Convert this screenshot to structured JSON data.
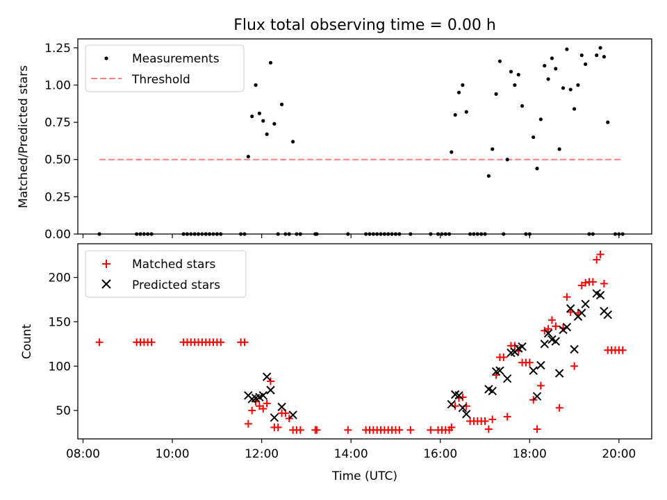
{
  "chart_data": [
    {
      "type": "scatter",
      "title": "Flux total observing time = 0.00 h",
      "xlabel": "",
      "ylabel": "Matched/Predicted stars",
      "ylim": [
        0,
        1.31
      ],
      "xlim": [
        "07:53",
        "20:44"
      ],
      "x_ticks": [
        "08:00",
        "10:00",
        "12:00",
        "14:00",
        "16:00",
        "18:00",
        "20:00"
      ],
      "x_tick_labels_visible": false,
      "y_ticks": [
        "0.00",
        "0.25",
        "0.50",
        "0.75",
        "1.00",
        "1.25"
      ],
      "legend": {
        "placement": "top-left",
        "entries": [
          "Measurements",
          "Threshold"
        ]
      },
      "series": [
        {
          "name": "Measurements",
          "marker": "dot",
          "color": "#000000",
          "points": [
            [
              "08:22",
              0
            ],
            [
              "09:12",
              0
            ],
            [
              "09:17",
              0
            ],
            [
              "09:22",
              0
            ],
            [
              "09:27",
              0
            ],
            [
              "09:32",
              0
            ],
            [
              "10:15",
              0
            ],
            [
              "10:20",
              0
            ],
            [
              "10:25",
              0
            ],
            [
              "10:30",
              0
            ],
            [
              "10:35",
              0
            ],
            [
              "10:40",
              0
            ],
            [
              "10:45",
              0
            ],
            [
              "10:50",
              0
            ],
            [
              "10:55",
              0
            ],
            [
              "11:00",
              0
            ],
            [
              "11:05",
              0
            ],
            [
              "11:32",
              0
            ],
            [
              "11:37",
              0
            ],
            [
              "11:42",
              0.52
            ],
            [
              "11:47",
              0.79
            ],
            [
              "11:52",
              1.0
            ],
            [
              "11:57",
              0.81
            ],
            [
              "12:02",
              0.76
            ],
            [
              "12:07",
              0.67
            ],
            [
              "12:12",
              1.15
            ],
            [
              "12:17",
              0.74
            ],
            [
              "12:27",
              0.87
            ],
            [
              "12:42",
              0.62
            ],
            [
              "12:22",
              0
            ],
            [
              "12:32",
              0
            ],
            [
              "12:37",
              0
            ],
            [
              "12:47",
              0
            ],
            [
              "12:52",
              0
            ],
            [
              "13:12",
              0
            ],
            [
              "13:14",
              0
            ],
            [
              "13:56",
              0
            ],
            [
              "14:20",
              0
            ],
            [
              "14:25",
              0
            ],
            [
              "14:30",
              0
            ],
            [
              "14:35",
              0
            ],
            [
              "14:40",
              0
            ],
            [
              "14:45",
              0
            ],
            [
              "14:50",
              0
            ],
            [
              "14:55",
              0
            ],
            [
              "15:00",
              0
            ],
            [
              "15:05",
              0
            ],
            [
              "15:20",
              0
            ],
            [
              "15:47",
              0
            ],
            [
              "15:57",
              0
            ],
            [
              "16:02",
              0
            ],
            [
              "16:07",
              0
            ],
            [
              "16:12",
              0
            ],
            [
              "16:15",
              0.55
            ],
            [
              "16:20",
              0.8
            ],
            [
              "16:25",
              0.95
            ],
            [
              "16:30",
              1.0
            ],
            [
              "16:35",
              0.82
            ],
            [
              "16:40",
              0
            ],
            [
              "16:45",
              0
            ],
            [
              "16:50",
              0
            ],
            [
              "16:55",
              0
            ],
            [
              "17:00",
              0
            ],
            [
              "17:25",
              0
            ],
            [
              "17:05",
              0.39
            ],
            [
              "17:10",
              0.57
            ],
            [
              "17:15",
              0.94
            ],
            [
              "17:20",
              1.16
            ],
            [
              "17:30",
              0.5
            ],
            [
              "17:35",
              1.09
            ],
            [
              "17:40",
              1.0
            ],
            [
              "17:45",
              1.07
            ],
            [
              "17:50",
              0.86
            ],
            [
              "17:55",
              0
            ],
            [
              "18:00",
              0
            ],
            [
              "18:05",
              0.65
            ],
            [
              "18:10",
              0.44
            ],
            [
              "18:15",
              0.77
            ],
            [
              "18:20",
              1.13
            ],
            [
              "18:25",
              1.04
            ],
            [
              "18:30",
              1.18
            ],
            [
              "18:35",
              1.11
            ],
            [
              "18:40",
              0.57
            ],
            [
              "18:45",
              0.98
            ],
            [
              "18:50",
              1.24
            ],
            [
              "18:55",
              0.97
            ],
            [
              "19:00",
              0.84
            ],
            [
              "19:05",
              1.0
            ],
            [
              "19:10",
              1.2
            ],
            [
              "19:15",
              1.14
            ],
            [
              "19:20",
              0
            ],
            [
              "19:25",
              0
            ],
            [
              "19:30",
              1.2
            ],
            [
              "19:35",
              1.25
            ],
            [
              "19:40",
              1.19
            ],
            [
              "19:45",
              0.75
            ],
            [
              "19:55",
              0
            ],
            [
              "20:00",
              0
            ],
            [
              "20:05",
              0
            ]
          ]
        },
        {
          "name": "Threshold",
          "marker": "dashed-line",
          "color": "#ff7f7f",
          "points": [
            [
              "08:22",
              0.5
            ],
            [
              "20:05",
              0.5
            ]
          ]
        }
      ]
    },
    {
      "type": "scatter",
      "title": "",
      "xlabel": "Time (UTC)",
      "ylabel": "Count",
      "ylim": [
        18,
        238
      ],
      "xlim": [
        "07:53",
        "20:44"
      ],
      "x_ticks": [
        "08:00",
        "10:00",
        "12:00",
        "14:00",
        "16:00",
        "18:00",
        "20:00"
      ],
      "y_ticks": [
        "50",
        "100",
        "150",
        "200"
      ],
      "legend": {
        "placement": "top-left",
        "entries": [
          "Matched stars",
          "Predicted stars"
        ]
      },
      "series": [
        {
          "name": "Matched stars",
          "marker": "plus",
          "color": "#ff0000",
          "points": [
            [
              "08:22",
              127
            ],
            [
              "09:12",
              127
            ],
            [
              "09:17",
              127
            ],
            [
              "09:22",
              127
            ],
            [
              "09:27",
              127
            ],
            [
              "09:32",
              127
            ],
            [
              "10:15",
              127
            ],
            [
              "10:20",
              127
            ],
            [
              "10:25",
              127
            ],
            [
              "10:30",
              127
            ],
            [
              "10:35",
              127
            ],
            [
              "10:40",
              127
            ],
            [
              "10:45",
              127
            ],
            [
              "10:50",
              127
            ],
            [
              "10:55",
              127
            ],
            [
              "11:00",
              127
            ],
            [
              "11:05",
              127
            ],
            [
              "11:32",
              127
            ],
            [
              "11:37",
              127
            ],
            [
              "11:42",
              35
            ],
            [
              "11:47",
              50
            ],
            [
              "11:52",
              60
            ],
            [
              "11:57",
              55
            ],
            [
              "12:02",
              52
            ],
            [
              "12:07",
              58
            ],
            [
              "12:12",
              83
            ],
            [
              "12:17",
              31
            ],
            [
              "12:22",
              31
            ],
            [
              "12:27",
              47
            ],
            [
              "12:32",
              47
            ],
            [
              "12:37",
              41
            ],
            [
              "12:42",
              28
            ],
            [
              "12:47",
              28
            ],
            [
              "12:52",
              28
            ],
            [
              "13:12",
              28
            ],
            [
              "13:14",
              28
            ],
            [
              "13:56",
              28
            ],
            [
              "14:20",
              28
            ],
            [
              "14:25",
              28
            ],
            [
              "14:30",
              28
            ],
            [
              "14:35",
              28
            ],
            [
              "14:40",
              28
            ],
            [
              "14:45",
              28
            ],
            [
              "14:50",
              28
            ],
            [
              "14:55",
              28
            ],
            [
              "15:00",
              28
            ],
            [
              "15:05",
              28
            ],
            [
              "15:20",
              28
            ],
            [
              "15:47",
              28
            ],
            [
              "15:57",
              28
            ],
            [
              "16:02",
              28
            ],
            [
              "16:07",
              28
            ],
            [
              "16:12",
              28
            ],
            [
              "16:15",
              31
            ],
            [
              "16:20",
              55
            ],
            [
              "16:25",
              64
            ],
            [
              "16:30",
              65
            ],
            [
              "16:35",
              55
            ],
            [
              "16:40",
              38
            ],
            [
              "16:45",
              38
            ],
            [
              "16:50",
              38
            ],
            [
              "16:55",
              38
            ],
            [
              "17:00",
              38
            ],
            [
              "17:05",
              29
            ],
            [
              "17:10",
              40
            ],
            [
              "17:15",
              90
            ],
            [
              "17:20",
              110
            ],
            [
              "17:25",
              110
            ],
            [
              "17:30",
              43
            ],
            [
              "17:35",
              123
            ],
            [
              "17:40",
              123
            ],
            [
              "17:45",
              117
            ],
            [
              "17:50",
              104
            ],
            [
              "17:55",
              104
            ],
            [
              "18:00",
              104
            ],
            [
              "18:05",
              62
            ],
            [
              "18:10",
              29
            ],
            [
              "18:15",
              78
            ],
            [
              "18:20",
              140
            ],
            [
              "18:25",
              142
            ],
            [
              "18:30",
              152
            ],
            [
              "18:35",
              145
            ],
            [
              "18:40",
              53
            ],
            [
              "18:45",
              143
            ],
            [
              "18:50",
              178
            ],
            [
              "18:55",
              161
            ],
            [
              "19:00",
              100
            ],
            [
              "19:05",
              160
            ],
            [
              "19:10",
              191
            ],
            [
              "19:15",
              194
            ],
            [
              "19:20",
              195
            ],
            [
              "19:25",
              195
            ],
            [
              "19:30",
              220
            ],
            [
              "19:35",
              226
            ],
            [
              "19:40",
              193
            ],
            [
              "19:45",
              118
            ],
            [
              "19:50",
              118
            ],
            [
              "19:55",
              118
            ],
            [
              "20:00",
              118
            ],
            [
              "20:05",
              118
            ]
          ]
        },
        {
          "name": "Predicted stars",
          "marker": "x",
          "color": "#000000",
          "points": [
            [
              "11:42",
              67
            ],
            [
              "11:47",
              63
            ],
            [
              "11:52",
              64
            ],
            [
              "11:57",
              65
            ],
            [
              "12:02",
              67
            ],
            [
              "12:07",
              88
            ],
            [
              "12:12",
              73
            ],
            [
              "12:17",
              42
            ],
            [
              "12:27",
              54
            ],
            [
              "12:42",
              45
            ],
            [
              "16:15",
              57
            ],
            [
              "16:20",
              68
            ],
            [
              "16:25",
              67
            ],
            [
              "16:30",
              53
            ],
            [
              "16:35",
              46
            ],
            [
              "17:05",
              74
            ],
            [
              "17:10",
              72
            ],
            [
              "17:15",
              94
            ],
            [
              "17:20",
              95
            ],
            [
              "17:30",
              86
            ],
            [
              "17:35",
              115
            ],
            [
              "17:40",
              116
            ],
            [
              "17:45",
              120
            ],
            [
              "17:50",
              122
            ],
            [
              "18:05",
              95
            ],
            [
              "18:10",
              66
            ],
            [
              "18:15",
              101
            ],
            [
              "18:20",
              125
            ],
            [
              "18:25",
              137
            ],
            [
              "18:30",
              130
            ],
            [
              "18:35",
              128
            ],
            [
              "18:40",
              92
            ],
            [
              "18:45",
              141
            ],
            [
              "18:50",
              144
            ],
            [
              "18:55",
              165
            ],
            [
              "19:00",
              119
            ],
            [
              "19:05",
              156
            ],
            [
              "19:10",
              160
            ],
            [
              "19:15",
              170
            ],
            [
              "19:30",
              182
            ],
            [
              "19:35",
              180
            ],
            [
              "19:40",
              162
            ],
            [
              "19:45",
              158
            ]
          ]
        }
      ]
    }
  ]
}
